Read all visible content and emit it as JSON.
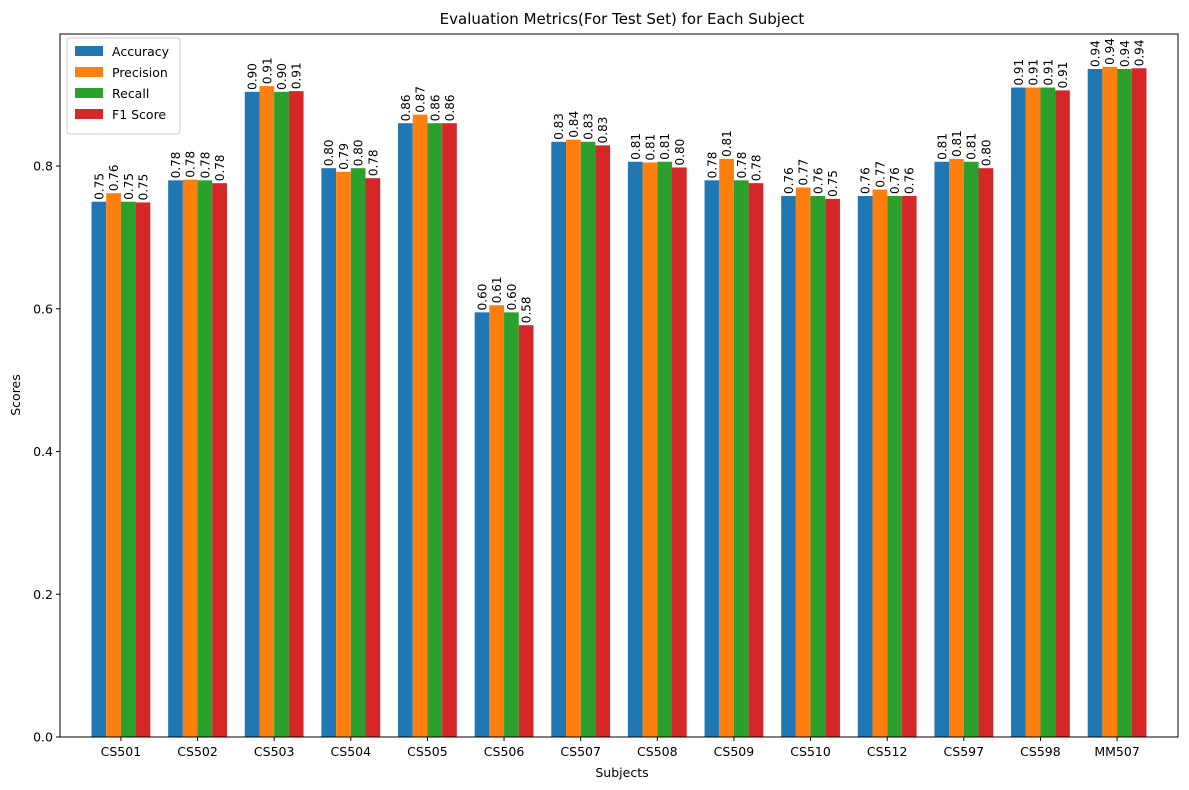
{
  "chart_data": {
    "type": "bar",
    "title": "Evaluation Metrics(For Test Set) for Each Subject",
    "xlabel": "Subjects",
    "ylabel": "Scores",
    "ylim": [
      0,
      0.985
    ],
    "yticks": [
      "0.0",
      "0.2",
      "0.4",
      "0.6",
      "0.8"
    ],
    "grid": false,
    "legend_position": "top-left",
    "categories": [
      "CS501",
      "CS502",
      "CS503",
      "CS504",
      "CS505",
      "CS506",
      "CS507",
      "CS508",
      "CS509",
      "CS510",
      "CS512",
      "CS597",
      "CS598",
      "MM507"
    ],
    "series": [
      {
        "name": "Accuracy",
        "color": "#1f77b4",
        "values": [
          0.75,
          0.78,
          0.904,
          0.797,
          0.86,
          0.595,
          0.834,
          0.806,
          0.78,
          0.758,
          0.758,
          0.806,
          0.91,
          0.936
        ]
      },
      {
        "name": "Precision",
        "color": "#ff7f0e",
        "values": [
          0.762,
          0.781,
          0.912,
          0.792,
          0.872,
          0.605,
          0.837,
          0.805,
          0.81,
          0.77,
          0.767,
          0.81,
          0.91,
          0.939
        ]
      },
      {
        "name": "Recall",
        "color": "#2ca02c",
        "values": [
          0.75,
          0.78,
          0.904,
          0.797,
          0.86,
          0.595,
          0.834,
          0.806,
          0.78,
          0.758,
          0.758,
          0.806,
          0.91,
          0.936
        ]
      },
      {
        "name": "F1 Score",
        "color": "#d62728",
        "values": [
          0.749,
          0.776,
          0.905,
          0.783,
          0.86,
          0.577,
          0.829,
          0.798,
          0.776,
          0.754,
          0.758,
          0.797,
          0.906,
          0.937
        ]
      }
    ],
    "data_labels": [
      [
        "0.75",
        "0.78",
        "0.90",
        "0.80",
        "0.86",
        "0.60",
        "0.83",
        "0.81",
        "0.78",
        "0.76",
        "0.76",
        "0.81",
        "0.91",
        "0.94"
      ],
      [
        "0.76",
        "0.78",
        "0.91",
        "0.79",
        "0.87",
        "0.61",
        "0.84",
        "0.81",
        "0.81",
        "0.77",
        "0.77",
        "0.81",
        "0.91",
        "0.94"
      ],
      [
        "0.75",
        "0.78",
        "0.90",
        "0.80",
        "0.86",
        "0.60",
        "0.83",
        "0.81",
        "0.78",
        "0.76",
        "0.76",
        "0.81",
        "0.91",
        "0.94"
      ],
      [
        "0.75",
        "0.78",
        "0.91",
        "0.78",
        "0.86",
        "0.58",
        "0.83",
        "0.80",
        "0.78",
        "0.75",
        "0.76",
        "0.80",
        "0.91",
        "0.94"
      ]
    ]
  }
}
